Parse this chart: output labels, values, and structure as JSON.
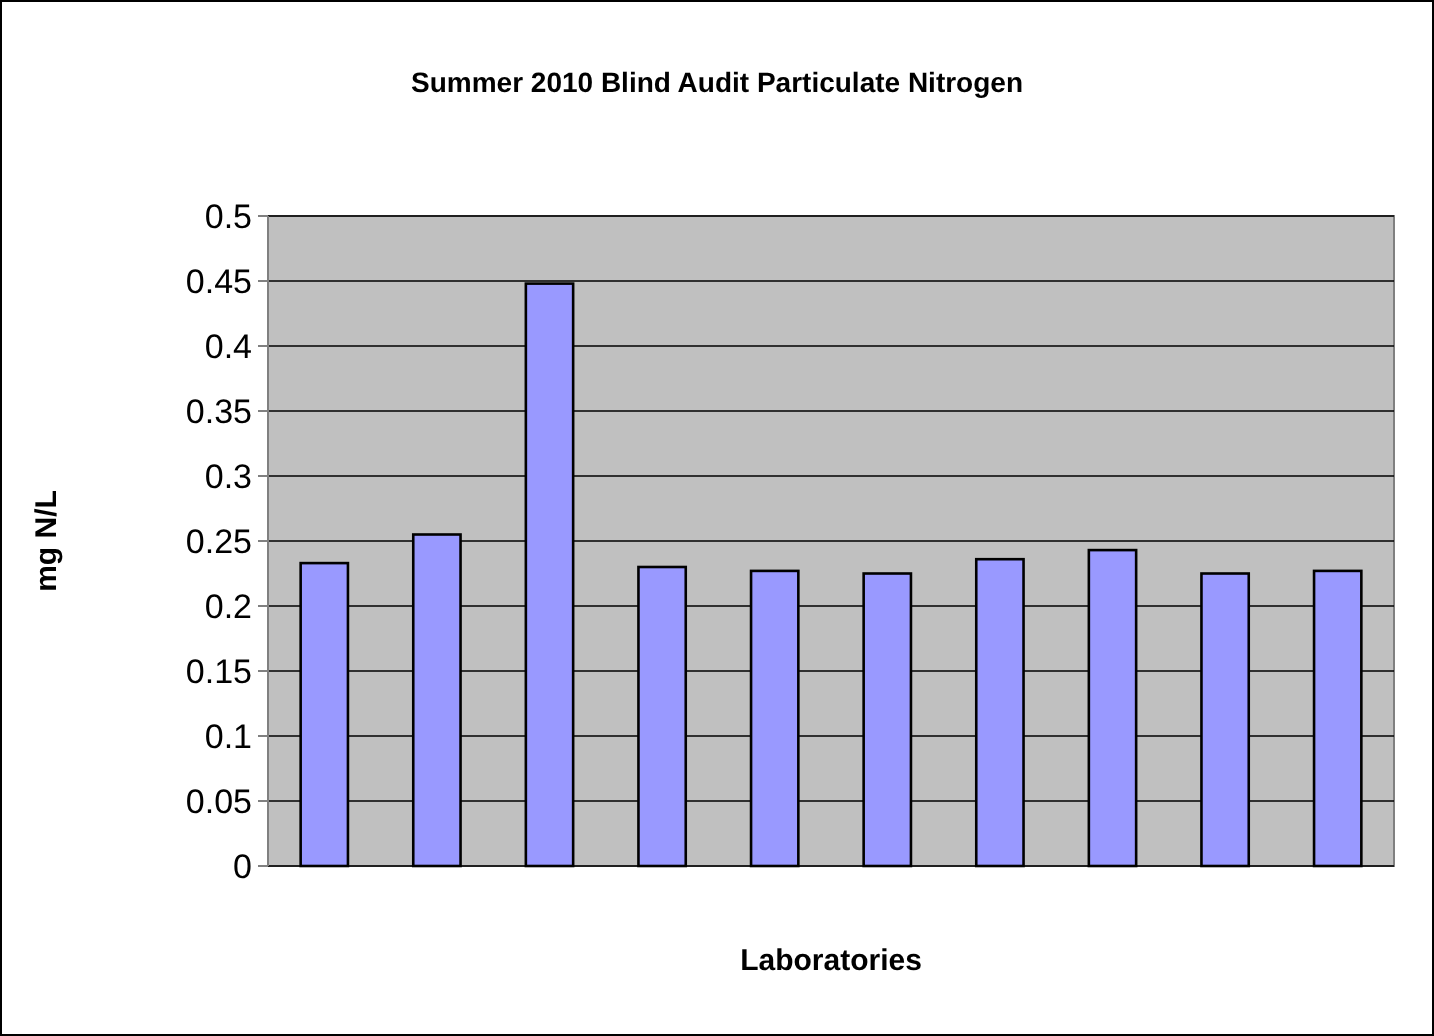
{
  "chart_data": {
    "type": "bar",
    "title": "Summer 2010 Blind Audit Particulate Nitrogen",
    "xlabel": "Laboratories",
    "ylabel": "mg N/L",
    "categories": [
      null,
      null,
      null,
      null,
      null,
      null,
      null,
      null,
      null,
      null
    ],
    "values": [
      0.233,
      0.255,
      0.448,
      0.23,
      0.227,
      0.225,
      0.236,
      0.243,
      0.225,
      0.227
    ],
    "color": "#9999ff",
    "ylim": [
      0,
      0.5
    ],
    "yticks": [
      0,
      0.05,
      0.1,
      0.15,
      0.2,
      0.25,
      0.3,
      0.35,
      0.4,
      0.45,
      0.5
    ],
    "grid": "y"
  }
}
